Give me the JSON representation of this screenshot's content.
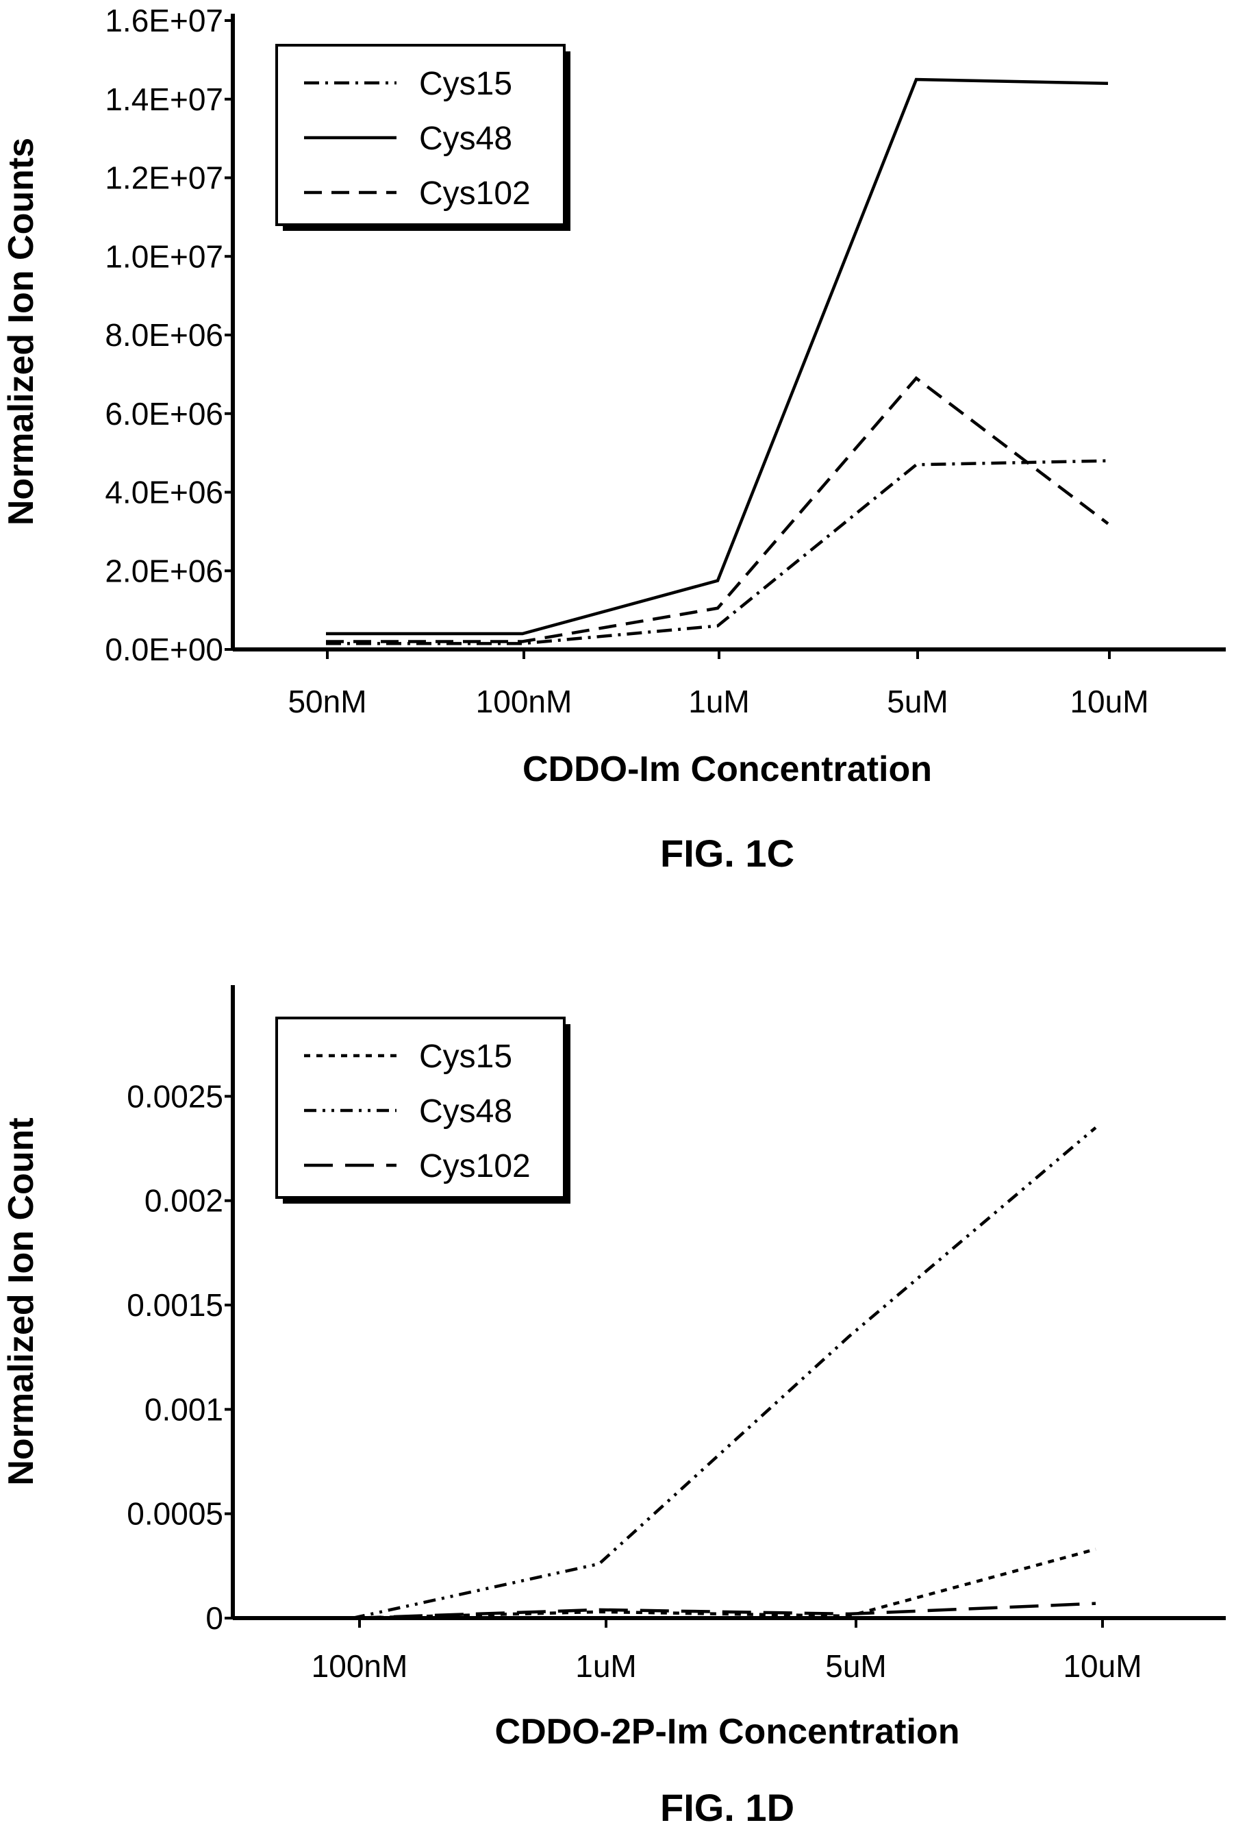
{
  "chart_data": [
    {
      "type": "line",
      "figure_label": "FIG. 1C",
      "xlabel": "CDDO-Im Concentration",
      "ylabel": "Normalized Ion Counts",
      "categories": [
        "50nM",
        "100nM",
        "1uM",
        "5uM",
        "10uM"
      ],
      "ylim": [
        0,
        16000000
      ],
      "yticks": [
        0,
        2000000,
        4000000,
        6000000,
        8000000,
        10000000,
        12000000,
        14000000,
        16000000
      ],
      "ytick_labels": [
        "0.0E+00",
        "2.0E+06",
        "4.0E+06",
        "6.0E+06",
        "8.0E+06",
        "1.0E+07",
        "1.2E+07",
        "1.4E+07",
        "1.6E+07"
      ],
      "legend_position": "top-left",
      "series": [
        {
          "name": "Cys15",
          "style": "dash-dot",
          "values": [
            150000,
            150000,
            600000,
            4700000,
            4800000
          ]
        },
        {
          "name": "Cys48",
          "style": "solid",
          "values": [
            400000,
            400000,
            1750000,
            14500000,
            14400000
          ]
        },
        {
          "name": "Cys102",
          "style": "dashed",
          "values": [
            200000,
            200000,
            1050000,
            6900000,
            3200000
          ]
        }
      ]
    },
    {
      "type": "line",
      "figure_label": "FIG. 1D",
      "xlabel": "CDDO-2P-Im Concentration",
      "ylabel": "Normalized Ion Count",
      "categories": [
        "100nM",
        "1uM",
        "5uM",
        "10uM"
      ],
      "ylim": [
        0,
        0.003
      ],
      "yticks": [
        0,
        0.0005,
        0.001,
        0.0015,
        0.002,
        0.0025
      ],
      "ytick_labels": [
        "0",
        "0.0005",
        "0.001",
        "0.0015",
        "0.002",
        "0.0025"
      ],
      "legend_position": "top-left",
      "series": [
        {
          "name": "Cys15",
          "style": "dotted",
          "values": [
            0,
            3e-05,
            1e-05,
            0.00033
          ]
        },
        {
          "name": "Cys48",
          "style": "dash-dot-dot",
          "values": [
            0,
            0.00026,
            0.00135,
            0.00235
          ]
        },
        {
          "name": "Cys102",
          "style": "long-dash",
          "values": [
            0,
            4e-05,
            2e-05,
            7e-05
          ]
        }
      ]
    }
  ]
}
